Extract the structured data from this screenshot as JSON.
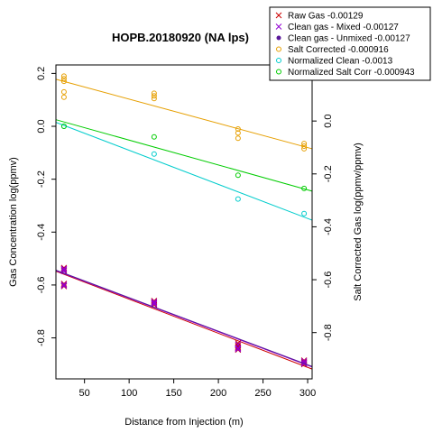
{
  "chart_data": {
    "type": "scatter",
    "title": "HOPB.20180920 (NA lps)",
    "xlabel": "Distance from Injection (m)",
    "ylabel": "Gas Concentration log(ppmv)",
    "ylabel_right": "Salt Corrected Gas log(ppmv/ppmv)",
    "xlim": [
      18,
      305
    ],
    "ylim": [
      -0.955,
      0.232
    ],
    "xticks": [
      50,
      100,
      150,
      200,
      250,
      300
    ],
    "xtick_labels": [
      "50",
      "100",
      "150",
      "200",
      "250",
      "300"
    ],
    "yticks": [
      0.2,
      0.0,
      -0.2,
      -0.4,
      -0.6,
      -0.8
    ],
    "ytick_labels": [
      "0.2",
      "0.0",
      "-0.2",
      "-0.4",
      "-0.6",
      "-0.8"
    ],
    "ytick_labels_right": [
      "0.0",
      "-0.2",
      "-0.4",
      "-0.6",
      "-0.8"
    ],
    "yticks_right": [
      0.0,
      -0.2,
      -0.4,
      -0.6,
      -0.8
    ],
    "right_axis_offset": 0.02,
    "grid": false,
    "legend_position": "top-right",
    "series": [
      {
        "name": "Raw Gas -0.00129",
        "color": "#cc0000",
        "marker": "x",
        "points": [
          [
            27,
            -0.54
          ],
          [
            27,
            -0.535
          ],
          [
            27,
            -0.545
          ],
          [
            27,
            -0.595
          ],
          [
            27,
            -0.6
          ],
          [
            27,
            -0.605
          ],
          [
            128,
            -0.66
          ],
          [
            128,
            -0.665
          ],
          [
            128,
            -0.67
          ],
          [
            128,
            -0.675
          ],
          [
            222,
            -0.82
          ],
          [
            222,
            -0.83
          ],
          [
            222,
            -0.835
          ],
          [
            222,
            -0.84
          ],
          [
            222,
            -0.845
          ],
          [
            296,
            -0.885
          ],
          [
            296,
            -0.89
          ],
          [
            296,
            -0.895
          ],
          [
            296,
            -0.9
          ]
        ],
        "fit": {
          "x": [
            18,
            305
          ],
          "y": [
            -0.548,
            -0.918
          ]
        }
      },
      {
        "name": "Clean gas - Mixed -0.00127",
        "color": "#9400d3",
        "marker": "x",
        "points": [
          [
            27,
            -0.538
          ],
          [
            27,
            -0.542
          ],
          [
            27,
            -0.548
          ],
          [
            27,
            -0.598
          ],
          [
            27,
            -0.603
          ],
          [
            128,
            -0.663
          ],
          [
            128,
            -0.668
          ],
          [
            128,
            -0.672
          ],
          [
            222,
            -0.825
          ],
          [
            222,
            -0.838
          ],
          [
            222,
            -0.843
          ],
          [
            296,
            -0.887
          ],
          [
            296,
            -0.893
          ],
          [
            296,
            -0.898
          ]
        ],
        "fit": {
          "x": [
            18,
            305
          ],
          "y": [
            -0.546,
            -0.91
          ]
        }
      },
      {
        "name": "Clean gas - Unmixed -0.00127",
        "color": "#5a189a",
        "marker": "dot",
        "points": [],
        "fit": {
          "x": [
            18,
            305
          ],
          "y": [
            -0.544,
            -0.908
          ]
        }
      },
      {
        "name": "Salt Corrected -0.000916",
        "color": "#e69f00",
        "marker": "circle",
        "points": [
          [
            27,
            0.19
          ],
          [
            27,
            0.18
          ],
          [
            27,
            0.17
          ],
          [
            27,
            0.13
          ],
          [
            27,
            0.11
          ],
          [
            128,
            0.125
          ],
          [
            128,
            0.115
          ],
          [
            128,
            0.105
          ],
          [
            222,
            -0.01
          ],
          [
            222,
            -0.025
          ],
          [
            222,
            -0.045
          ],
          [
            296,
            -0.065
          ],
          [
            296,
            -0.075
          ],
          [
            296,
            -0.085
          ]
        ],
        "fit": {
          "x": [
            18,
            305
          ],
          "y": [
            0.178,
            -0.085
          ]
        }
      },
      {
        "name": "Normalized Clean -0.0013",
        "color": "#00cccc",
        "marker": "circle",
        "points": [
          [
            27,
            0.0
          ],
          [
            128,
            -0.105
          ],
          [
            222,
            -0.275
          ],
          [
            296,
            -0.33
          ]
        ],
        "fit": {
          "x": [
            18,
            305
          ],
          "y": [
            0.015,
            -0.355
          ]
        }
      },
      {
        "name": "Normalized Salt Corr -0.000943",
        "color": "#00cc00",
        "marker": "circle",
        "points": [
          [
            27,
            0.0
          ],
          [
            128,
            -0.04
          ],
          [
            222,
            -0.185
          ],
          [
            296,
            -0.235
          ]
        ],
        "fit": {
          "x": [
            18,
            305
          ],
          "y": [
            0.025,
            -0.245
          ]
        }
      }
    ]
  }
}
